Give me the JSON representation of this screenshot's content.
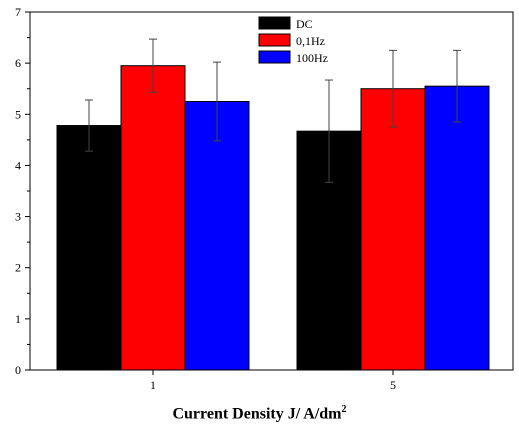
{
  "chart_data": {
    "type": "bar",
    "categories": [
      "1",
      "5"
    ],
    "series": [
      {
        "name": "DC",
        "color": "#000000",
        "values": [
          4.78,
          4.67
        ],
        "errors": [
          0.5,
          1.0
        ]
      },
      {
        "name": "0,1Hz",
        "color": "#ff0000",
        "values": [
          5.95,
          5.5
        ],
        "errors": [
          0.52,
          0.75
        ]
      },
      {
        "name": "100Hz",
        "color": "#0000ff",
        "values": [
          5.25,
          5.55
        ],
        "errors": [
          0.77,
          0.7
        ]
      }
    ],
    "ylim": [
      0,
      7
    ],
    "yticks": [
      "0",
      "1",
      "2",
      "3",
      "4",
      "5",
      "6",
      "7"
    ],
    "xlabel_main": "Current Density J/ A/dm",
    "xlabel_sup": "2",
    "legend_position": "top-center",
    "grid": false
  }
}
